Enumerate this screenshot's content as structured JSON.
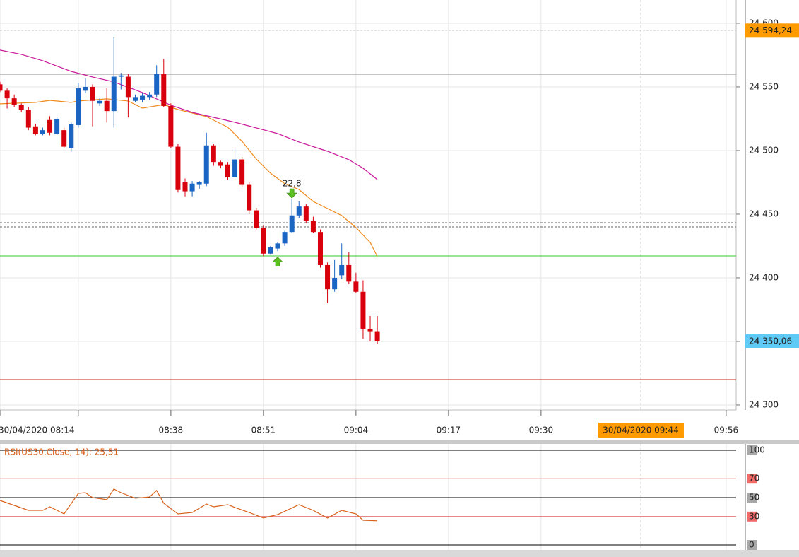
{
  "chart_data": [
    {
      "type": "candlestick",
      "x": [
        494,
        495,
        496,
        497,
        498,
        499,
        500,
        501,
        502,
        503,
        504,
        505,
        506,
        507,
        508,
        509,
        510,
        511,
        512,
        513,
        514,
        515,
        516,
        517,
        518,
        519,
        520,
        521,
        522,
        523,
        524,
        525,
        526,
        527,
        528,
        529,
        530,
        531,
        532,
        533,
        534,
        535,
        536,
        537,
        538,
        539,
        540,
        541,
        542,
        543,
        544,
        545,
        546,
        547
      ],
      "open": [
        24552,
        24547,
        24541,
        24536,
        24532,
        24519,
        24513,
        24524,
        24513,
        24516,
        24502,
        24520,
        24547,
        24550,
        24537,
        24539,
        24531,
        24558,
        24558,
        24539,
        24540,
        24542,
        24544,
        24560,
        24535,
        24503,
        24475,
        24468,
        24473,
        24474,
        24504,
        24491,
        24489,
        24479,
        24493,
        24473,
        24453,
        24439,
        24419,
        24423,
        24427,
        24436,
        24449,
        24456,
        24445,
        24436,
        24410,
        24391,
        24402,
        24410,
        24397,
        24389,
        24360,
        24358
      ],
      "high": [
        24554,
        24549,
        24544,
        24537,
        24534,
        24521,
        24518,
        24527,
        24526,
        24518,
        24522,
        24553,
        24557,
        24552,
        24541,
        24549,
        24589,
        24561,
        24560,
        24544,
        24545,
        24546,
        24567,
        24572,
        24537,
        24505,
        24478,
        24476,
        24476,
        24514,
        24505,
        24492,
        24491,
        24502,
        24495,
        24475,
        24455,
        24441,
        24425,
        24428,
        24437,
        24462,
        24460,
        24458,
        24448,
        24438,
        24412,
        24414,
        24427,
        24420,
        24404,
        24398,
        24370,
        24370
      ],
      "low": [
        24546,
        24533,
        24534,
        24530,
        24516,
        24512,
        24512,
        24512,
        24512,
        24502,
        24499,
        24518,
        24545,
        24519,
        24535,
        24522,
        24518,
        24548,
        24526,
        24538,
        24538,
        24540,
        24542,
        24534,
        24502,
        24467,
        24464,
        24464,
        24470,
        24472,
        24488,
        24486,
        24477,
        24477,
        24471,
        24450,
        24438,
        24417,
        24418,
        24421,
        24425,
        24435,
        24447,
        24443,
        24435,
        24408,
        24380,
        24389,
        24399,
        24395,
        24388,
        24352,
        24350,
        24348
      ],
      "close": [
        24547,
        24541,
        24536,
        24532,
        24518,
        24513,
        24516,
        24514,
        24525,
        24503,
        24521,
        24549,
        24550,
        24539,
        24539,
        24531,
        24558,
        24559,
        24542,
        24542,
        24543,
        24544,
        24560,
        24535,
        24503,
        24469,
        24468,
        24474,
        24475,
        24504,
        24491,
        24488,
        24479,
        24493,
        24473,
        24453,
        24439,
        24419,
        24424,
        24427,
        24436,
        24449,
        24456,
        24445,
        24436,
        24410,
        24391,
        24400,
        24410,
        24397,
        24389,
        24360,
        24358,
        24350.06
      ],
      "up_color": "#1a64c4",
      "down_color": "#d8000c",
      "xlim": [
        494,
        597.4
      ],
      "xticks": [
        {
          "value": 494,
          "label": "30/04/2020 08:14"
        },
        {
          "value": 505,
          "label": null
        },
        {
          "value": 518,
          "label": "08:38"
        },
        {
          "value": 531,
          "label": "08:51"
        },
        {
          "value": 544,
          "label": "09:04"
        },
        {
          "value": 557,
          "label": "09:17"
        },
        {
          "value": 570,
          "label": "09:30"
        },
        {
          "value": 596,
          "label": "09:56"
        }
      ],
      "ylim": [
        24296.1,
        24618.3
      ],
      "yticks": [
        {
          "value": 24300,
          "label": "24 300"
        },
        {
          "value": 24350,
          "label": null
        },
        {
          "value": 24400,
          "label": "24 400"
        },
        {
          "value": 24450,
          "label": "24 450"
        },
        {
          "value": 24500,
          "label": "24 500"
        },
        {
          "value": 24550,
          "label": "24 550"
        },
        {
          "value": 24600,
          "label": "24 600"
        }
      ],
      "grid": true,
      "overlays": [
        {
          "color": "#f08a1c",
          "x": [
            494,
            499,
            501,
            504,
            505,
            509,
            512,
            514,
            517,
            519,
            523,
            526,
            528,
            530,
            532,
            534,
            536,
            538,
            540,
            542,
            544,
            546,
            547
          ],
          "values": [
            24536.7,
            24537.8,
            24539.4,
            24537.8,
            24538.9,
            24540.6,
            24538.9,
            24533.3,
            24536.1,
            24532.2,
            24526.7,
            24518.3,
            24507.2,
            24493.3,
            24482.2,
            24473.9,
            24469.4,
            24460,
            24454.4,
            24448.9,
            24439.4,
            24427.8,
            24416.7
          ]
        },
        {
          "color": "#c8189a",
          "x": [
            494,
            497,
            500,
            504,
            507,
            510,
            514,
            518,
            521,
            524,
            527,
            530,
            533,
            536,
            540,
            543,
            545,
            547
          ],
          "values": [
            24578.9,
            24575.6,
            24570.6,
            24562.2,
            24557.8,
            24553.9,
            24545.6,
            24535.6,
            24530,
            24526.1,
            24522.2,
            24517.8,
            24513.3,
            24506.7,
            24499.4,
            24492.8,
            24486.1,
            24477.2
          ]
        }
      ],
      "levels": [
        {
          "value": 24594.24,
          "color": "#d6d6d6",
          "style": "dashed"
        },
        {
          "value": 24560,
          "color": "#8a8a8a",
          "style": "solid"
        },
        {
          "value": 24443.3,
          "color": "#666666",
          "style": "dashed"
        },
        {
          "value": 24440,
          "color": "#666666",
          "style": "dashed"
        },
        {
          "value": 24417.2,
          "color": "#2ecc2e",
          "style": "solid"
        },
        {
          "value": 24320,
          "color": "#cc2020",
          "style": "solid"
        }
      ],
      "price_labels": [
        {
          "value": 24594.24,
          "label": "24 594,24",
          "color": "#ff9a00"
        },
        {
          "value": 24350.06,
          "label": "24 350,06",
          "color": "#5ecaf5"
        }
      ],
      "annotations": [
        {
          "x": 535,
          "y": 24466,
          "label": "22,8",
          "direction": "down"
        },
        {
          "x": 533,
          "y": 24413,
          "direction": "up"
        }
      ],
      "crosshair": {
        "value": 584,
        "label": "30/04/2020 09:44",
        "color": "#ff9a00"
      }
    },
    {
      "type": "line",
      "title": "RSI(US30.Close, 14): 25,51",
      "x": [
        494,
        496,
        498,
        500,
        501,
        503,
        505,
        506,
        507,
        509,
        510,
        511,
        513,
        515,
        516,
        517,
        519,
        521,
        523,
        524,
        526,
        527,
        529,
        531,
        533,
        536,
        538,
        540,
        542,
        544,
        545,
        547
      ],
      "series": [
        {
          "color": "#d8601a",
          "values": [
            47,
            41.8,
            36.6,
            36.6,
            40.3,
            32.8,
            54.5,
            55.2,
            50,
            47.8,
            59,
            55.2,
            49.3,
            50.7,
            57.5,
            44,
            32.8,
            34.3,
            43.3,
            40.3,
            42.5,
            39.6,
            34.3,
            28.4,
            32.1,
            42.5,
            36.6,
            28.4,
            36.6,
            32.8,
            26.1,
            25.51
          ]
        }
      ],
      "ylim": [
        0,
        100
      ],
      "yticks": [
        0,
        30,
        50,
        70,
        100
      ],
      "tick_lines": [
        "#000000",
        "#e06060",
        "#000000",
        "#e06060",
        "#000000"
      ],
      "tick_boxes": [
        "#a8a8a8",
        "#f06a6a",
        "#a8a8a8",
        "#f06a6a",
        "#a8a8a8"
      ]
    }
  ]
}
